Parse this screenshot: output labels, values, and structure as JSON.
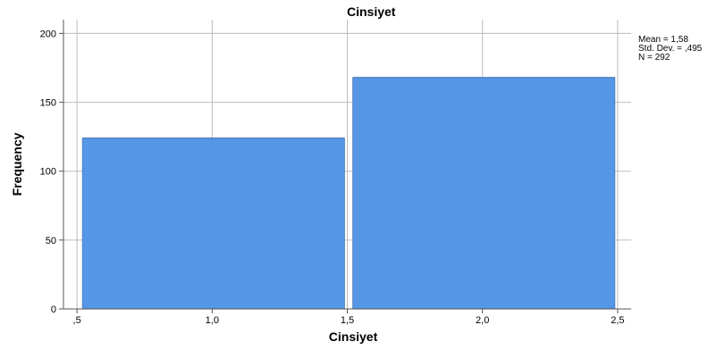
{
  "chart_data": {
    "type": "bar",
    "title": "Cinsiyet",
    "xlabel": "Cinsiyet",
    "ylabel": "Frequency",
    "bins": [
      {
        "start": 0.5,
        "end": 1.5,
        "value": 124
      },
      {
        "start": 1.5,
        "end": 2.5,
        "value": 168
      }
    ],
    "xlim": [
      0.45,
      2.55
    ],
    "ylim": [
      0,
      210
    ],
    "x_ticks": [
      0.5,
      1.0,
      1.5,
      2.0,
      2.5
    ],
    "x_tick_labels": [
      ",5",
      "1,0",
      "1,5",
      "2,0",
      "2,5"
    ],
    "y_ticks": [
      0,
      50,
      100,
      150,
      200
    ],
    "y_tick_labels": [
      "0",
      "50",
      "100",
      "150",
      "200"
    ],
    "grid": true,
    "bar_color": "#5596e6",
    "stats": {
      "mean": "Mean = 1,58",
      "std_dev": "Std. Dev. = ,495",
      "n": "N = 292"
    }
  }
}
